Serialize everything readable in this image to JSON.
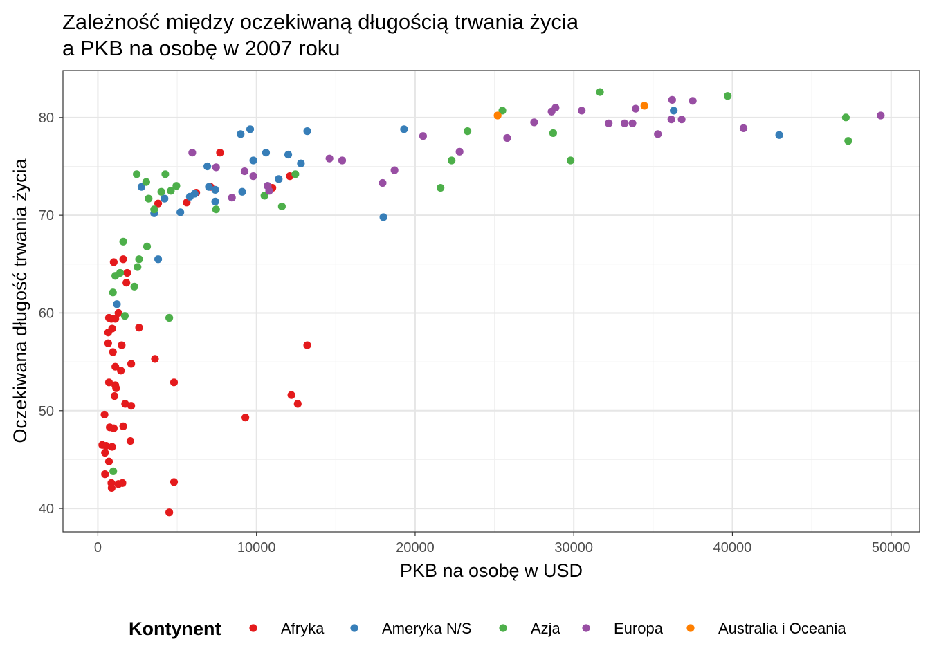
{
  "chart_data": {
    "type": "scatter",
    "title_lines": [
      "Zależność między oczekiwaną długością trwania życia",
      "a PKB na osobę w 2007 roku"
    ],
    "xlabel": "PKB na osobę w USD",
    "ylabel": "Oczekiwana długość trwania życia",
    "xlim": [
      -2200,
      51800
    ],
    "ylim": [
      37.6,
      84.8
    ],
    "x_ticks": [
      0,
      10000,
      20000,
      30000,
      40000,
      50000
    ],
    "x_tick_labels": [
      "0",
      "10000",
      "20000",
      "30000",
      "40000",
      "50000"
    ],
    "y_ticks": [
      40,
      50,
      60,
      70,
      80
    ],
    "y_tick_labels": [
      "40",
      "50",
      "60",
      "70",
      "80"
    ],
    "grid": true,
    "legend": {
      "title": "Kontynent",
      "position": "bottom"
    },
    "series": [
      {
        "name": "Afryka",
        "color": "#E41A1C",
        "points": [
          [
            4500,
            39.6
          ],
          [
            4800,
            42.7
          ],
          [
            1550,
            42.6
          ],
          [
            1300,
            42.5
          ],
          [
            850,
            42.6
          ],
          [
            870,
            42.1
          ],
          [
            450,
            43.5
          ],
          [
            700,
            44.8
          ],
          [
            450,
            45.7
          ],
          [
            280,
            46.5
          ],
          [
            520,
            46.4
          ],
          [
            900,
            46.3
          ],
          [
            2050,
            46.9
          ],
          [
            750,
            48.3
          ],
          [
            1000,
            48.2
          ],
          [
            1600,
            48.4
          ],
          [
            9300,
            49.3
          ],
          [
            420,
            49.6
          ],
          [
            1050,
            51.5
          ],
          [
            1720,
            50.7
          ],
          [
            2100,
            50.5
          ],
          [
            12600,
            50.7
          ],
          [
            12200,
            51.6
          ],
          [
            1150,
            52.3
          ],
          [
            1100,
            52.6
          ],
          [
            4800,
            52.9
          ],
          [
            700,
            52.9
          ],
          [
            1450,
            54.1
          ],
          [
            1100,
            54.5
          ],
          [
            2100,
            54.8
          ],
          [
            3600,
            55.3
          ],
          [
            950,
            56.0
          ],
          [
            13200,
            56.7
          ],
          [
            650,
            56.9
          ],
          [
            1500,
            56.7
          ],
          [
            2600,
            58.5
          ],
          [
            900,
            58.4
          ],
          [
            650,
            58.0
          ],
          [
            850,
            59.4
          ],
          [
            1100,
            59.4
          ],
          [
            700,
            59.5
          ],
          [
            1300,
            60.0
          ],
          [
            1800,
            63.1
          ],
          [
            1850,
            64.1
          ],
          [
            1600,
            65.5
          ],
          [
            1000,
            65.2
          ],
          [
            3800,
            71.2
          ],
          [
            5600,
            71.3
          ],
          [
            6200,
            72.3
          ],
          [
            7100,
            72.9
          ],
          [
            11000,
            72.8
          ],
          [
            12100,
            74.0
          ],
          [
            7700,
            76.4
          ]
        ]
      },
      {
        "name": "Ameryka N/S",
        "color": "#377EB8",
        "points": [
          [
            1200,
            60.9
          ],
          [
            3800,
            65.5
          ],
          [
            18000,
            69.8
          ],
          [
            3550,
            70.2
          ],
          [
            5200,
            70.3
          ],
          [
            7400,
            71.4
          ],
          [
            4200,
            71.7
          ],
          [
            5800,
            71.9
          ],
          [
            6100,
            72.2
          ],
          [
            7400,
            72.6
          ],
          [
            9100,
            72.4
          ],
          [
            2750,
            72.9
          ],
          [
            7000,
            72.9
          ],
          [
            10700,
            73.0
          ],
          [
            11400,
            73.7
          ],
          [
            12800,
            75.3
          ],
          [
            9800,
            75.6
          ],
          [
            6900,
            75.0
          ],
          [
            10600,
            76.4
          ],
          [
            12000,
            76.2
          ],
          [
            9000,
            78.3
          ],
          [
            9600,
            78.8
          ],
          [
            13200,
            78.6
          ],
          [
            19300,
            78.8
          ],
          [
            42950,
            78.2
          ],
          [
            36300,
            80.7
          ]
        ]
      },
      {
        "name": "Azja",
        "color": "#4DAF4A",
        "points": [
          [
            970,
            43.8
          ],
          [
            1700,
            59.7
          ],
          [
            4500,
            59.5
          ],
          [
            950,
            62.1
          ],
          [
            2300,
            62.7
          ],
          [
            1100,
            63.8
          ],
          [
            1400,
            64.1
          ],
          [
            2500,
            64.7
          ],
          [
            2600,
            65.5
          ],
          [
            1600,
            67.3
          ],
          [
            3100,
            66.8
          ],
          [
            3550,
            70.6
          ],
          [
            7450,
            70.6
          ],
          [
            3200,
            71.7
          ],
          [
            10500,
            72.0
          ],
          [
            11600,
            70.9
          ],
          [
            21600,
            72.8
          ],
          [
            4000,
            72.4
          ],
          [
            4600,
            72.5
          ],
          [
            4950,
            73.0
          ],
          [
            3050,
            73.4
          ],
          [
            2450,
            74.2
          ],
          [
            4250,
            74.2
          ],
          [
            12450,
            74.2
          ],
          [
            22300,
            75.6
          ],
          [
            29800,
            75.6
          ],
          [
            23300,
            78.6
          ],
          [
            28700,
            78.4
          ],
          [
            25500,
            80.7
          ],
          [
            39700,
            82.2
          ],
          [
            31650,
            82.6
          ],
          [
            47150,
            80.0
          ],
          [
            47300,
            77.6
          ]
        ]
      },
      {
        "name": "Europa",
        "color": "#984EA3",
        "points": [
          [
            5950,
            76.4
          ],
          [
            7450,
            74.9
          ],
          [
            9250,
            74.5
          ],
          [
            9800,
            74.0
          ],
          [
            10700,
            73.0
          ],
          [
            10800,
            72.5
          ],
          [
            8450,
            71.8
          ],
          [
            14600,
            75.8
          ],
          [
            15400,
            75.6
          ],
          [
            17950,
            73.3
          ],
          [
            18700,
            74.6
          ],
          [
            20500,
            78.1
          ],
          [
            22800,
            76.5
          ],
          [
            25800,
            77.9
          ],
          [
            27500,
            79.5
          ],
          [
            28600,
            80.6
          ],
          [
            28850,
            81.0
          ],
          [
            30500,
            80.7
          ],
          [
            32200,
            79.4
          ],
          [
            33200,
            79.4
          ],
          [
            33700,
            79.4
          ],
          [
            33900,
            80.9
          ],
          [
            35300,
            78.3
          ],
          [
            36150,
            79.8
          ],
          [
            36200,
            81.8
          ],
          [
            36800,
            79.8
          ],
          [
            37500,
            81.7
          ],
          [
            40700,
            78.9
          ],
          [
            49350,
            80.2
          ]
        ]
      },
      {
        "name": "Australia i Oceania",
        "color": "#FF7F00",
        "points": [
          [
            25200,
            80.2
          ],
          [
            34450,
            81.2
          ]
        ]
      }
    ]
  }
}
